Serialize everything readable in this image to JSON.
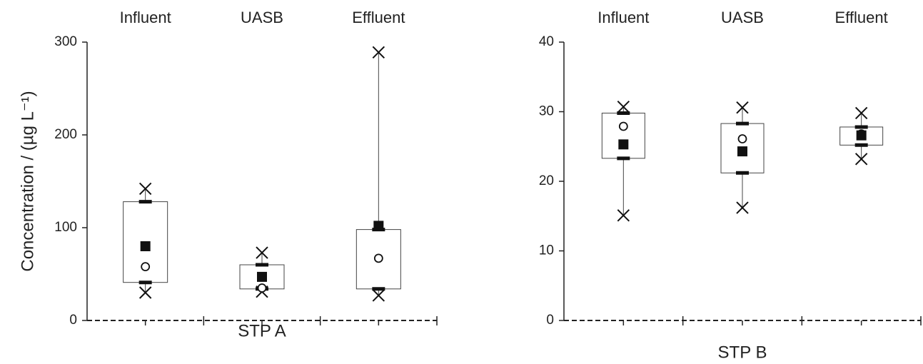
{
  "chart_data": [
    {
      "type": "box",
      "xlabel": "STP A",
      "ylabel": "Concentration / (µg L⁻¹)",
      "categories": [
        "Influent",
        "UASB",
        "Effluent"
      ],
      "ylim": [
        0,
        300
      ],
      "yticks": [
        0,
        100,
        200,
        300
      ],
      "boxes": [
        {
          "min": 30,
          "q1": 41,
          "median": 58,
          "mean": 80,
          "q3": 128,
          "max": 142
        },
        {
          "min": 31,
          "q1": 34,
          "median": 35,
          "mean": 47,
          "q3": 60,
          "max": 73
        },
        {
          "min": 27,
          "q1": 34,
          "median": 67,
          "mean": 102,
          "q3": 98,
          "max": 289
        }
      ]
    },
    {
      "type": "box",
      "xlabel": "STP B",
      "categories": [
        "Influent",
        "UASB",
        "Effluent"
      ],
      "ylim": [
        0,
        40
      ],
      "yticks": [
        0,
        10,
        20,
        30,
        40
      ],
      "boxes": [
        {
          "min": 15.1,
          "q1": 23.3,
          "median": 27.9,
          "mean": 25.3,
          "q3": 29.8,
          "max": 30.7
        },
        {
          "min": 16.2,
          "q1": 21.2,
          "median": 26.1,
          "mean": 24.3,
          "q3": 28.3,
          "max": 30.6
        },
        {
          "min": 23.2,
          "q1": 25.2,
          "median": 26.8,
          "mean": 26.6,
          "q3": 27.8,
          "max": 29.8
        }
      ]
    }
  ]
}
